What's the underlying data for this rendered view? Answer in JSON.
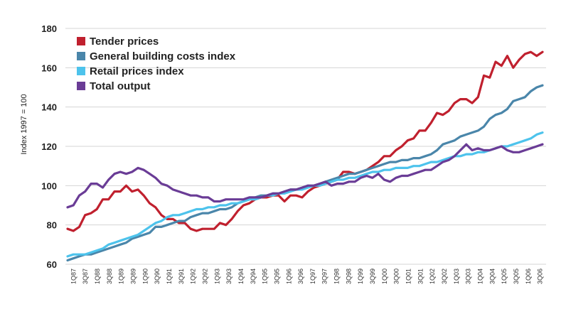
{
  "chart_data": {
    "type": "line",
    "title": "",
    "xlabel": "",
    "ylabel": "Index 1997 = 100",
    "ylim": [
      60,
      180
    ],
    "yticks": [
      60,
      80,
      100,
      120,
      140,
      160,
      180
    ],
    "grid": "horizontal",
    "legend_position": "top-left",
    "x_labels": [
      "1Q87",
      "3Q87",
      "1Q88",
      "3Q88",
      "1Q89",
      "3Q89",
      "1Q90",
      "3Q90",
      "1Q91",
      "3Q91",
      "1Q92",
      "3Q92",
      "1Q93",
      "3Q93",
      "1Q94",
      "3Q94",
      "1Q95",
      "3Q95",
      "1Q96",
      "3Q96",
      "1Q97",
      "3Q97",
      "1Q98",
      "3Q98",
      "1Q99",
      "3Q99",
      "1Q00",
      "3Q00",
      "1Q01",
      "3Q01",
      "1Q02",
      "3Q02",
      "1Q03",
      "3Q03",
      "1Q04",
      "3Q04",
      "1Q05",
      "3Q05",
      "1Q06",
      "3Q06"
    ],
    "series": [
      {
        "name": "Tender prices",
        "color": "#c0202e",
        "values": [
          78,
          77,
          79,
          85,
          86,
          88,
          93,
          93,
          97,
          97,
          100,
          97,
          98,
          95,
          91,
          89,
          85,
          83,
          83,
          81,
          81,
          78,
          77,
          78,
          78,
          78,
          81,
          80,
          83,
          87,
          90,
          91,
          93,
          94,
          94,
          95,
          95,
          92,
          95,
          95,
          94,
          97,
          99,
          100,
          101,
          102,
          103,
          107,
          107,
          106,
          107,
          108,
          110,
          112,
          115,
          115,
          118,
          120,
          123,
          124,
          128,
          128,
          132,
          137,
          136,
          138,
          142,
          144,
          144,
          142,
          145,
          156,
          155,
          163,
          161,
          166,
          160,
          164,
          167,
          168,
          166,
          168
        ]
      },
      {
        "name": "General building costs index",
        "color": "#4a86aa",
        "values": [
          62,
          63,
          64,
          65,
          65,
          66,
          67,
          68,
          69,
          70,
          71,
          73,
          74,
          75,
          76,
          79,
          79,
          80,
          81,
          82,
          82,
          84,
          85,
          86,
          86,
          87,
          88,
          88,
          89,
          91,
          92,
          93,
          94,
          95,
          95,
          96,
          96,
          97,
          98,
          98,
          99,
          100,
          100,
          101,
          102,
          103,
          104,
          105,
          106,
          106,
          107,
          108,
          109,
          110,
          111,
          112,
          112,
          113,
          113,
          114,
          114,
          115,
          116,
          118,
          121,
          122,
          123,
          125,
          126,
          127,
          128,
          130,
          134,
          136,
          137,
          139,
          143,
          144,
          145,
          148,
          150,
          151
        ]
      },
      {
        "name": "Retail prices index",
        "color": "#4dc3ec",
        "values": [
          64,
          65,
          65,
          65,
          66,
          67,
          68,
          70,
          71,
          72,
          73,
          74,
          75,
          77,
          79,
          81,
          82,
          84,
          85,
          85,
          86,
          87,
          88,
          88,
          89,
          89,
          90,
          90,
          91,
          91,
          92,
          93,
          93,
          94,
          95,
          95,
          96,
          96,
          97,
          98,
          98,
          99,
          100,
          100,
          101,
          102,
          103,
          103,
          104,
          104,
          105,
          106,
          107,
          107,
          108,
          108,
          109,
          109,
          109,
          110,
          110,
          111,
          112,
          112,
          113,
          114,
          115,
          115,
          116,
          116,
          117,
          117,
          118,
          119,
          120,
          120,
          121,
          122,
          123,
          124,
          126,
          127
        ]
      },
      {
        "name": "Total output",
        "color": "#6a3c96",
        "values": [
          89,
          90,
          95,
          97,
          101,
          101,
          99,
          103,
          106,
          107,
          106,
          107,
          109,
          108,
          106,
          104,
          101,
          100,
          98,
          97,
          96,
          95,
          95,
          94,
          94,
          92,
          92,
          93,
          93,
          93,
          93,
          94,
          94,
          94,
          95,
          96,
          96,
          97,
          98,
          98,
          99,
          100,
          100,
          101,
          102,
          100,
          101,
          101,
          102,
          102,
          104,
          105,
          104,
          106,
          103,
          102,
          104,
          105,
          105,
          106,
          107,
          108,
          108,
          110,
          112,
          113,
          115,
          118,
          121,
          118,
          119,
          118,
          118,
          119,
          120,
          118,
          117,
          117,
          118,
          119,
          120,
          121
        ]
      }
    ]
  }
}
